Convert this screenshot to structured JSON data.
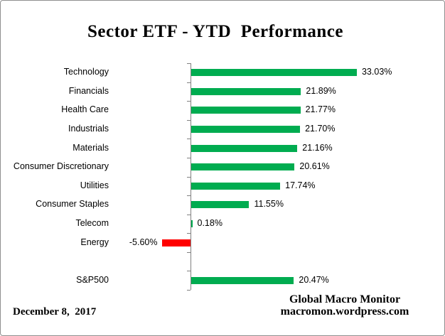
{
  "title": "Sector ETF - YTD  Performance",
  "footer": {
    "date": "December 8,  2017",
    "credit_line1": "Global Macro Monitor",
    "credit_line2": "macromon.wordpress.com"
  },
  "colors": {
    "positive_bar": "#00AC50",
    "negative_bar": "#FF0000",
    "axis": "#808080"
  },
  "chart_data": {
    "type": "bar",
    "orientation": "horizontal",
    "title": "Sector ETF - YTD  Performance",
    "categories": [
      "Technology",
      "Financials",
      "Health Care",
      "Industrials",
      "Materials",
      "Consumer Discretionary",
      "Utilities",
      "Consumer Staples",
      "Telecom",
      "Energy",
      "",
      "S&P500"
    ],
    "values": [
      33.03,
      21.89,
      21.77,
      21.7,
      21.16,
      20.61,
      17.74,
      11.55,
      0.18,
      -5.6,
      null,
      20.47
    ],
    "value_labels": [
      "33.03%",
      "21.89%",
      "21.77%",
      "21.70%",
      "21.16%",
      "20.61%",
      "17.74%",
      "11.55%",
      "0.18%",
      "-5.60%",
      "",
      "20.47%"
    ],
    "xlim": [
      -16,
      34
    ],
    "grid": false,
    "legend": false
  }
}
